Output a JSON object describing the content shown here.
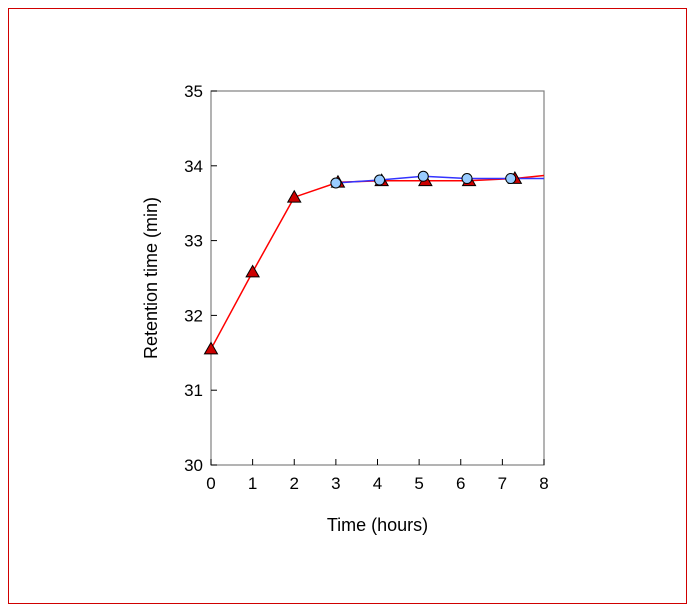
{
  "chart_data": {
    "type": "line",
    "title": "",
    "xlabel": "Time (hours)",
    "ylabel": "Retention time (min)",
    "xlim": [
      0,
      8
    ],
    "ylim": [
      30,
      35
    ],
    "xticks": [
      "0",
      "1",
      "2",
      "3",
      "4",
      "5",
      "6",
      "7",
      "8"
    ],
    "yticks": [
      "30",
      "31",
      "32",
      "33",
      "34",
      "35"
    ],
    "grid": false,
    "legend": "none",
    "series": [
      {
        "marker": "triangle",
        "line_color": "#ff0000",
        "marker_fill": "#cc0000",
        "points": [
          {
            "x": 0.0,
            "y": 31.55
          },
          {
            "x": 1.0,
            "y": 32.58
          },
          {
            "x": 2.0,
            "y": 33.58
          },
          {
            "x": 3.05,
            "y": 33.78
          },
          {
            "x": 4.1,
            "y": 33.8
          },
          {
            "x": 5.15,
            "y": 33.8
          },
          {
            "x": 6.2,
            "y": 33.8
          },
          {
            "x": 7.3,
            "y": 33.83
          },
          {
            "x": 8.0,
            "y": 33.87
          }
        ]
      },
      {
        "marker": "circle",
        "line_color": "#3333ff",
        "marker_fill": "#99ccff",
        "points": [
          {
            "x": 3.0,
            "y": 33.77
          },
          {
            "x": 4.05,
            "y": 33.81
          },
          {
            "x": 5.1,
            "y": 33.86
          },
          {
            "x": 6.15,
            "y": 33.83
          },
          {
            "x": 7.2,
            "y": 33.83
          },
          {
            "x": 8.0,
            "y": 33.83
          }
        ]
      }
    ]
  }
}
